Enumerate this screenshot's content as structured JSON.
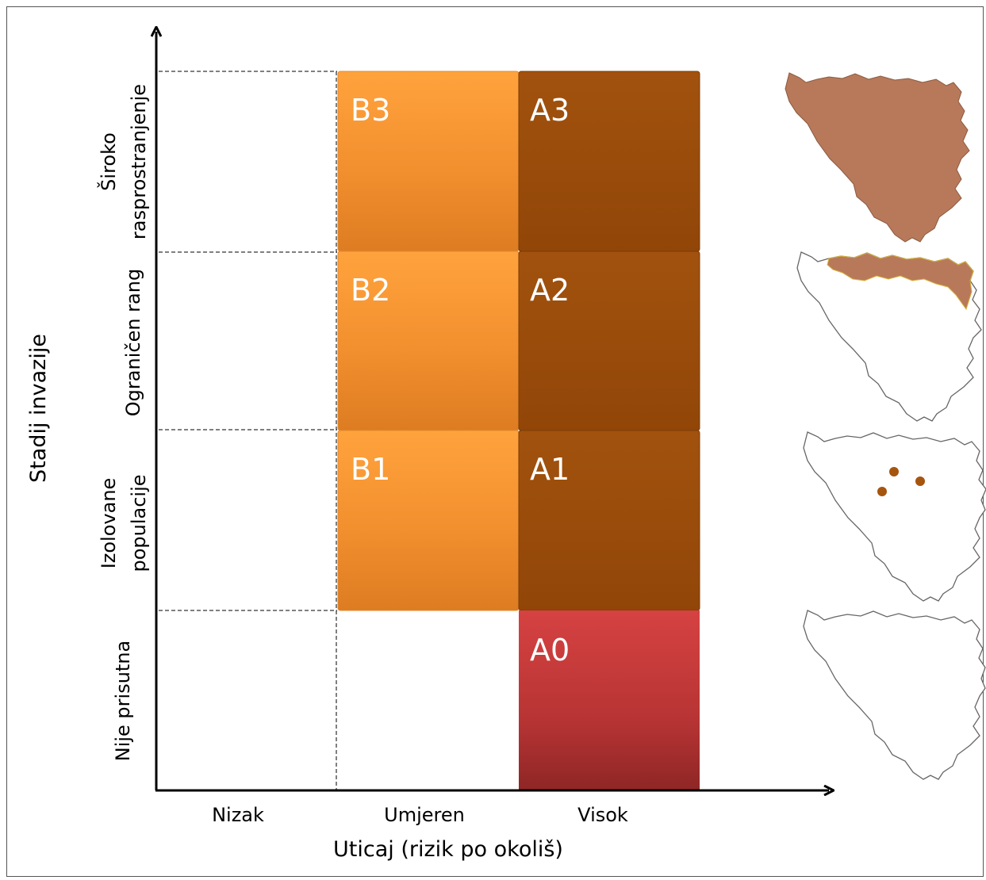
{
  "axes": {
    "x_title": "Uticaj (rizik po okoliš)",
    "y_title": "Stadij invazije"
  },
  "columns": [
    "Nizak",
    "Umjeren",
    "Visok"
  ],
  "rows": [
    {
      "lines": [
        "Široko",
        "rasprostranjenje"
      ]
    },
    {
      "lines": [
        "Ograničen rang"
      ]
    },
    {
      "lines": [
        "Izolovane",
        "populacije"
      ]
    },
    {
      "lines": [
        "Nije prisutna"
      ]
    }
  ],
  "categories": {
    "B3": "B3",
    "A3": "A3",
    "B2": "B2",
    "A2": "A2",
    "B1": "B1",
    "A1": "A1",
    "A0": "A0"
  },
  "colors": {
    "orange_top": "#ffa03a",
    "orange_bottom": "#e07f23",
    "brown": "#9e4e0c",
    "brown_dark": "#8a4008",
    "red_top": "#d43f3f",
    "red_bottom": "#962828",
    "map_fill": "#b8795a",
    "map_stroke": "#666666",
    "dot": "#a6550f"
  }
}
